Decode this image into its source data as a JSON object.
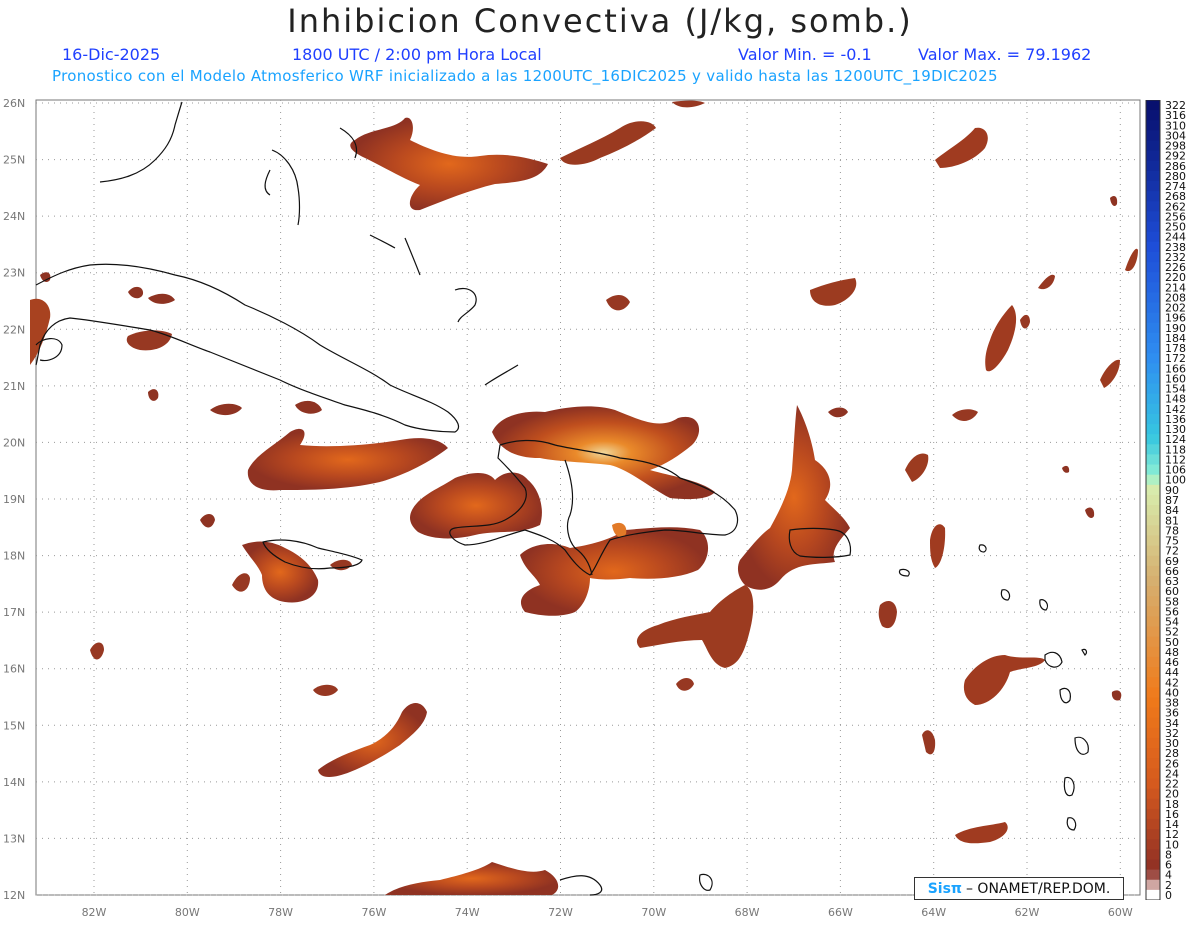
{
  "title": "Inhibicion Convectiva (J/kg, somb.)",
  "date": "16-Dic-2025",
  "time": "1800 UTC / 2:00 pm Hora Local",
  "valmin": "Valor Min. = -0.1",
  "valmax": "Valor Max. = 79.1962",
  "forecast_line": "Pronostico con el Modelo Atmosferico WRF inicializado a las 1200UTC_16DIC2025 y valido hasta las  1200UTC_19DIC2025",
  "credit": {
    "sis": "Sisπ",
    "rest": "– ONAMET/REP.DOM."
  },
  "lat_labels": [
    "26N",
    "25N",
    "24N",
    "23N",
    "22N",
    "21N",
    "20N",
    "19N",
    "18N",
    "17N",
    "16N",
    "15N",
    "14N",
    "13N",
    "12N"
  ],
  "lon_labels": [
    "82W",
    "80W",
    "78W",
    "76W",
    "74W",
    "72W",
    "70W",
    "68W",
    "66W",
    "64W",
    "62W",
    "60W"
  ],
  "colorbar_labels": [
    "322",
    "316",
    "310",
    "304",
    "298",
    "292",
    "286",
    "280",
    "274",
    "268",
    "262",
    "256",
    "250",
    "244",
    "238",
    "232",
    "226",
    "220",
    "214",
    "208",
    "202",
    "196",
    "190",
    "184",
    "178",
    "172",
    "166",
    "160",
    "154",
    "148",
    "142",
    "136",
    "130",
    "124",
    "118",
    "112",
    "106",
    "100",
    "90",
    "87",
    "84",
    "81",
    "78",
    "75",
    "72",
    "69",
    "66",
    "63",
    "60",
    "58",
    "56",
    "54",
    "52",
    "50",
    "48",
    "46",
    "44",
    "42",
    "40",
    "38",
    "36",
    "34",
    "32",
    "30",
    "28",
    "26",
    "24",
    "22",
    "20",
    "18",
    "16",
    "14",
    "12",
    "10",
    "8",
    "6",
    "4",
    "2",
    "0"
  ],
  "colors": {
    "high": "#0a1f8f",
    "mid": "#35c9e8",
    "low_yellow": "#d7e3a0",
    "orange": "#f06a10",
    "brown": "#8a2f22"
  }
}
